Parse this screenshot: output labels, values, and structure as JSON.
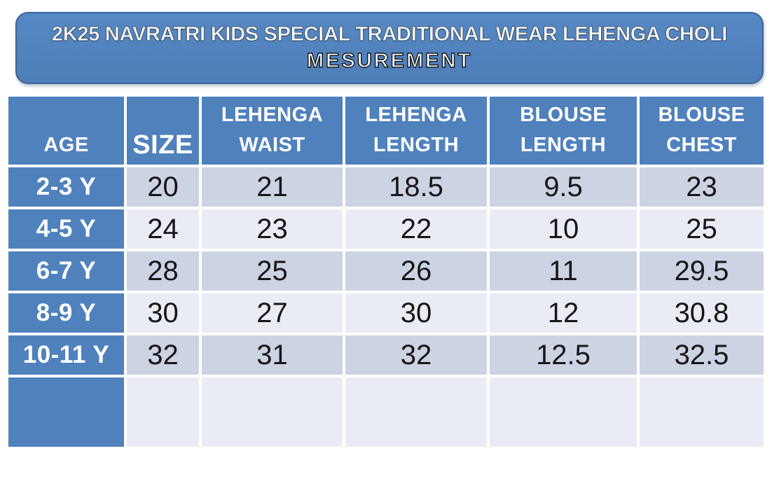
{
  "colors": {
    "header_blue": "#4f81bd",
    "band_dark": "#ccd3e3",
    "band_light": "#e9ecf4",
    "banner_border": "#3c6496",
    "banner_top": "#5688c5",
    "banner_bottom": "#4d7eb8",
    "num_color": "#161616"
  },
  "banner": {
    "title": "2K25 NAVRATRI KIDS SPECIAL TRADITIONAL WEAR LEHENGA CHOLI",
    "subtitle": "MESUREMENT"
  },
  "table": {
    "headers": [
      {
        "top": "",
        "bottom": "AGE"
      },
      {
        "top": "",
        "bottom": "SIZE"
      },
      {
        "top": "LEHENGA",
        "bottom": "WAIST"
      },
      {
        "top": "LEHENGA",
        "bottom": "LENGTH"
      },
      {
        "top": "BLOUSE",
        "bottom": "LENGTH"
      },
      {
        "top": "BLOUSE",
        "bottom": "CHEST"
      }
    ],
    "rows": [
      {
        "label": "2-3 Y",
        "values": [
          "20",
          "21",
          "18.5",
          "9.5",
          "23"
        ]
      },
      {
        "label": "4-5 Y",
        "values": [
          "24",
          "23",
          "22",
          "10",
          "25"
        ]
      },
      {
        "label": "6-7 Y",
        "values": [
          "28",
          "25",
          "26",
          "11",
          "29.5"
        ]
      },
      {
        "label": "8-9 Y",
        "values": [
          "30",
          "27",
          "30",
          "12",
          "30.8"
        ]
      },
      {
        "label": "10-11 Y",
        "values": [
          "32",
          "31",
          "32",
          "12.5",
          "32.5"
        ]
      },
      {
        "label": "",
        "values": [
          "",
          "",
          "",
          "",
          ""
        ]
      }
    ]
  },
  "chart_data": {
    "type": "table",
    "title": "2K25 NAVRATRI KIDS SPECIAL TRADITIONAL WEAR LEHENGA CHOLI MESUREMENT",
    "columns": [
      "AGE",
      "SIZE",
      "LEHENGA WAIST",
      "LEHENGA LENGTH",
      "BLOUSE LENGTH",
      "BLOUSE CHEST"
    ],
    "rows": [
      [
        "2-3 Y",
        20,
        21,
        18.5,
        9.5,
        23
      ],
      [
        "4-5 Y",
        24,
        23,
        22,
        10,
        25
      ],
      [
        "6-7 Y",
        28,
        25,
        26,
        11,
        29.5
      ],
      [
        "8-9 Y",
        30,
        27,
        30,
        12,
        30.8
      ],
      [
        "10-11 Y",
        32,
        31,
        32,
        12.5,
        32.5
      ]
    ],
    "layout_hints": {
      "banded_rows": true,
      "header_fill": "#4f81bd",
      "band_colors": [
        "#ccd3e3",
        "#e9ecf4"
      ]
    }
  }
}
